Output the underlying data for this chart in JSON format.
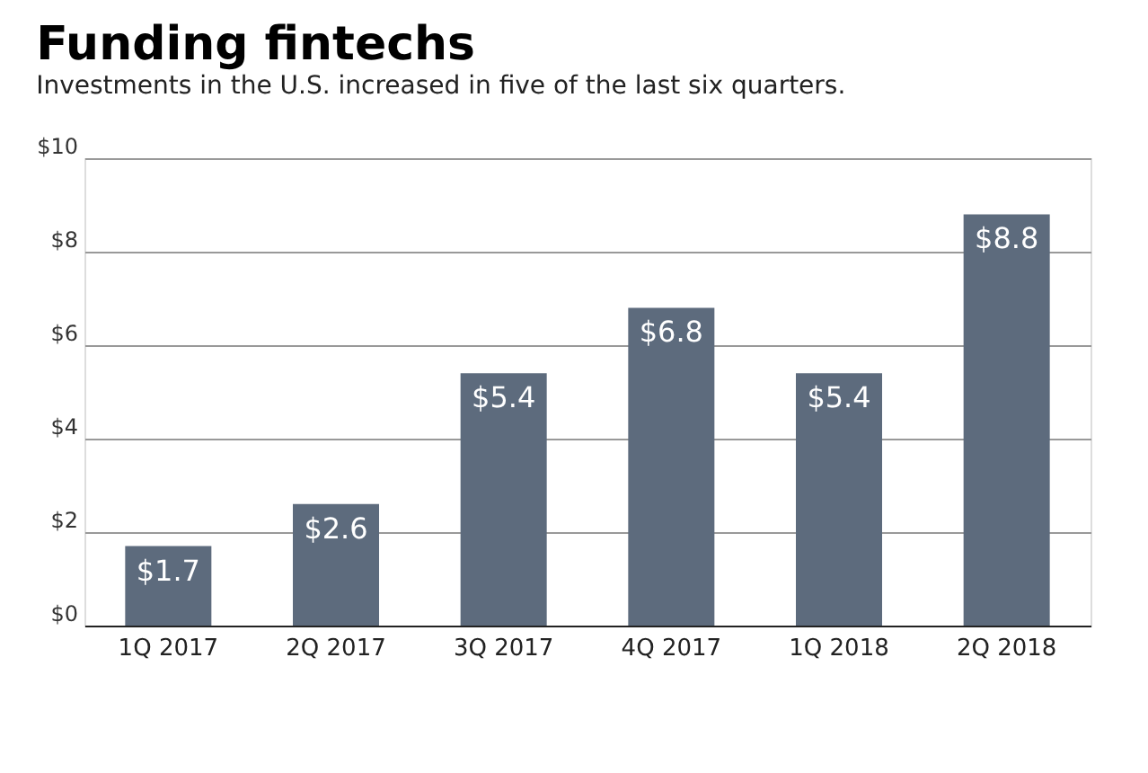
{
  "chart_data": {
    "type": "bar",
    "title": "Funding fintechs",
    "subtitle": "Investments in the U.S. increased in five of the last six quarters.",
    "categories": [
      "1Q 2017",
      "2Q 2017",
      "3Q 2017",
      "4Q 2017",
      "1Q 2018",
      "2Q 2018"
    ],
    "values": [
      1.7,
      2.6,
      5.4,
      6.8,
      5.4,
      8.8
    ],
    "value_labels": [
      "$1.7",
      "$2.6",
      "$5.4",
      "$6.8",
      "$5.4",
      "$8.8"
    ],
    "color": "#5d6b7d",
    "ylim": [
      0,
      10
    ],
    "yticks": [
      {
        "value": 0,
        "label": "$0"
      },
      {
        "value": 2,
        "label": "$2"
      },
      {
        "value": 4,
        "label": "$4"
      },
      {
        "value": 6,
        "label": "$6"
      },
      {
        "value": 8,
        "label": "$8"
      },
      {
        "value": 10,
        "label": "$10"
      }
    ],
    "grid": "y"
  }
}
